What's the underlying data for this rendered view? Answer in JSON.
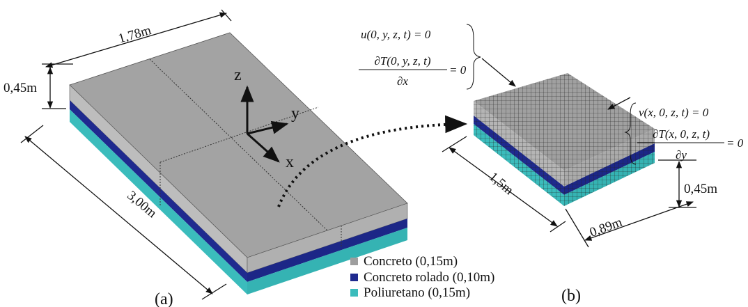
{
  "left_view": {
    "label": "(a)",
    "dimensions": {
      "length": "1,78m",
      "height": "0,45m",
      "width": "3,00m"
    },
    "axes": {
      "z": "z",
      "y": "y",
      "x": "x"
    }
  },
  "legend": [
    "Concreto (0,15m)",
    "Concreto rolado (0,10m)",
    "Poliuretano (0,15m)"
  ],
  "right_view": {
    "label": "(b)",
    "dimensions": {
      "length": "1,5m",
      "width": "0,89m",
      "height": "0,45m"
    },
    "boundary_conditions": [
      {
        "equation": "u(0, y, z, t) = 0",
        "numerator": "∂T(0, y, z, t)",
        "denominator": "∂x",
        "rhs": "= 0"
      },
      {
        "equation": "v(x, 0, z, t) = 0",
        "numerator": "∂T(x, 0, z, t)",
        "denominator": "∂y",
        "rhs": "= 0"
      }
    ]
  }
}
